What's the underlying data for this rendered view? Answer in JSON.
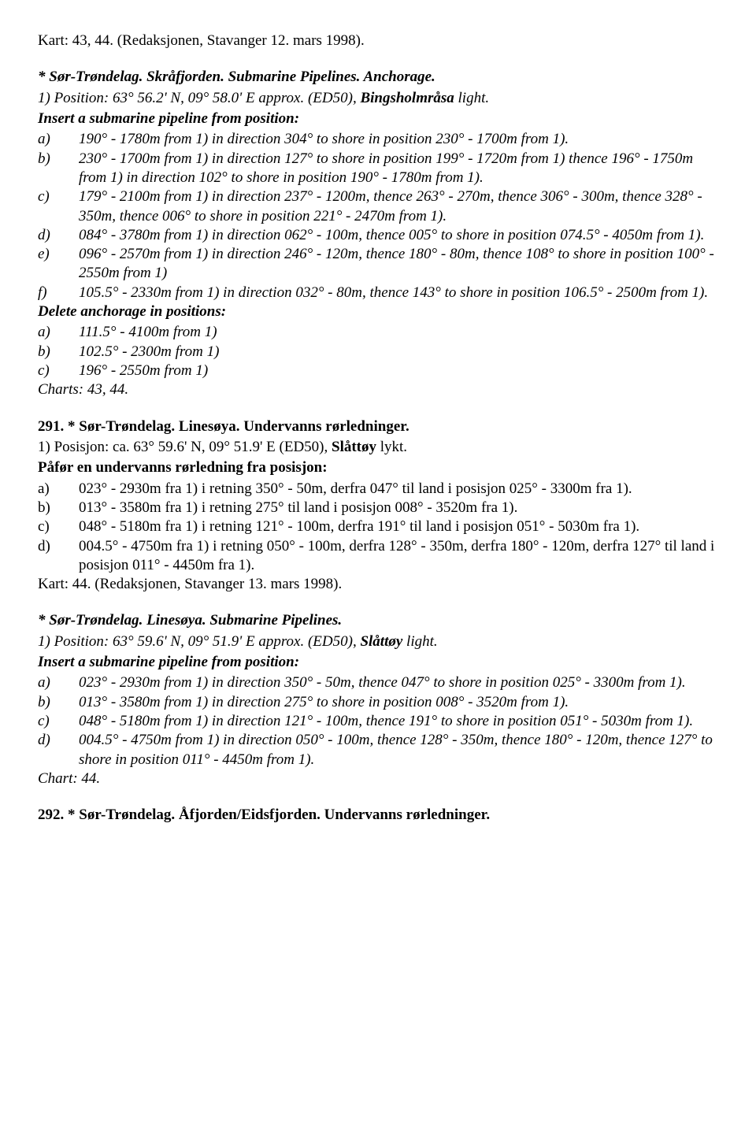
{
  "sec1": {
    "chart_line": "Kart: 43, 44. (Redaksjonen, Stavanger 12. mars 1998).",
    "title": "* Sør-Trøndelag. Skråfjorden. Submarine Pipelines. Anchorage.",
    "pos": "1) Position: 63° 56.2' N, 09° 58.0' E approx. (ED50), ",
    "light": "Bingsholmråsa",
    "light_suffix": " light.",
    "insert_heading": "Insert a submarine pipeline from position:",
    "insert": [
      {
        "label": "a)",
        "body": "190° - 1780m from 1) in direction 304° to shore in position 230° - 1700m from 1)."
      },
      {
        "label": "b)",
        "body": "230° - 1700m from 1) in direction 127° to shore in position 199° - 1720m from 1) thence 196° - 1750m from 1) in direction 102° to shore in position 190° - 1780m from 1)."
      },
      {
        "label": "c)",
        "body": "179° - 2100m from 1) in direction 237° - 1200m, thence 263° - 270m, thence 306° - 300m, thence 328° - 350m, thence 006° to shore in position 221° - 2470m from 1)."
      },
      {
        "label": "d)",
        "body": "084° - 3780m from 1) in direction 062° - 100m, thence 005° to shore in position 074.5° - 4050m from 1)."
      },
      {
        "label": "e)",
        "body": "096° - 2570m from 1) in direction 246° - 120m, thence 180° - 80m, thence 108° to shore in position 100° - 2550m from 1)"
      },
      {
        "label": "f)",
        "body": "105.5° - 2330m from 1) in direction 032° - 80m, thence 143° to shore in position 106.5° - 2500m from 1)."
      }
    ],
    "delete_heading": "Delete anchorage in positions:",
    "delete": [
      {
        "label": "a)",
        "body": "111.5° - 4100m from 1)"
      },
      {
        "label": "b)",
        "body": "102.5° - 2300m from 1)"
      },
      {
        "label": "c)",
        "body": "196° - 2550m from 1)"
      }
    ],
    "charts": "Charts: 43, 44."
  },
  "sec2": {
    "title": "291. * Sør-Trøndelag. Linesøya. Undervanns rørledninger.",
    "pos_prefix": "1) Posisjon: ca. 63° 59.6' N, 09° 51.9' E (ED50), ",
    "light": "Slåttøy",
    "light_suffix": " lykt.",
    "insert_heading": "Påfør en undervanns rørledning fra posisjon:",
    "insert": [
      {
        "label": "a)",
        "body": "023° - 2930m fra 1) i retning 350° - 50m, derfra 047° til land i posisjon 025° - 3300m fra 1)."
      },
      {
        "label": "b)",
        "body": "013° - 3580m fra 1) i retning 275° til land i posisjon 008° - 3520m fra 1)."
      },
      {
        "label": "c)",
        "body": "048° - 5180m fra 1) i retning 121° - 100m, derfra 191° til land i posisjon 051° - 5030m fra 1)."
      },
      {
        "label": "d)",
        "body": "004.5° - 4750m fra 1) i retning 050° - 100m, derfra 128° - 350m, derfra 180° - 120m, derfra 127° til land i posisjon 011° - 4450m fra 1)."
      }
    ],
    "chart_line": "Kart: 44. (Redaksjonen, Stavanger 13. mars 1998)."
  },
  "sec3": {
    "title": "* Sør-Trøndelag. Linesøya. Submarine Pipelines.",
    "pos_prefix": "1) Position: 63° 59.6' N, 09° 51.9' E approx. (ED50), ",
    "light": "Slåttøy",
    "light_suffix": " light.",
    "insert_heading": "Insert a submarine pipeline from position:",
    "insert": [
      {
        "label": "a)",
        "body": "023° - 2930m from 1) in direction 350° - 50m, thence 047° to shore in position 025° - 3300m from 1)."
      },
      {
        "label": "b)",
        "body": "013° - 3580m from 1) in direction 275° to shore in position 008° - 3520m from 1)."
      },
      {
        "label": "c)",
        "body": "048° - 5180m from 1) in direction 121° - 100m, thence 191° to shore in position 051° - 5030m from 1)."
      },
      {
        "label": "d)",
        "body": "004.5° - 4750m from 1) in direction 050° - 100m, thence 128° - 350m, thence 180° - 120m, thence 127° to shore in position 011° - 4450m from 1)."
      }
    ],
    "charts": "Chart: 44."
  },
  "sec4": {
    "title": "292. * Sør-Trøndelag. Åfjorden/Eidsfjorden. Undervanns rørledninger."
  }
}
